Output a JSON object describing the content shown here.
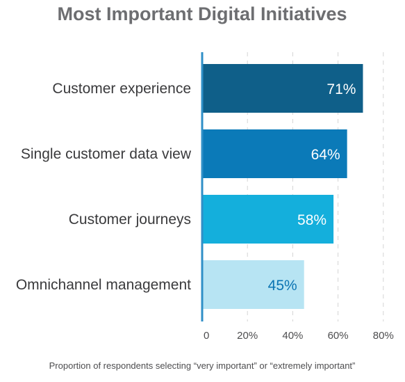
{
  "chart_data": {
    "type": "bar",
    "orientation": "horizontal",
    "title": "Most Important Digital Initiatives",
    "xlabel": "Proportion of respondents selecting “very important” or “extremely important”",
    "ylabel": "",
    "categories": [
      "Customer experience",
      "Single customer data view",
      "Customer journeys",
      "Omnichannel management"
    ],
    "values": [
      71,
      64,
      58,
      45
    ],
    "value_labels": [
      "71%",
      "64%",
      "58%",
      "45%"
    ],
    "xlim": [
      0,
      80
    ],
    "x_ticks": [
      "0",
      "20%",
      "40%",
      "60%",
      "80%"
    ],
    "grid": "vertical dashed",
    "colors": [
      "#0f5f89",
      "#0b7ab8",
      "#14afdc",
      "#b7e4f3"
    ],
    "value_label_colors": [
      "#ffffff",
      "#ffffff",
      "#ffffff",
      "#0b74b3"
    ],
    "axis_color": "#2f8fc7"
  }
}
